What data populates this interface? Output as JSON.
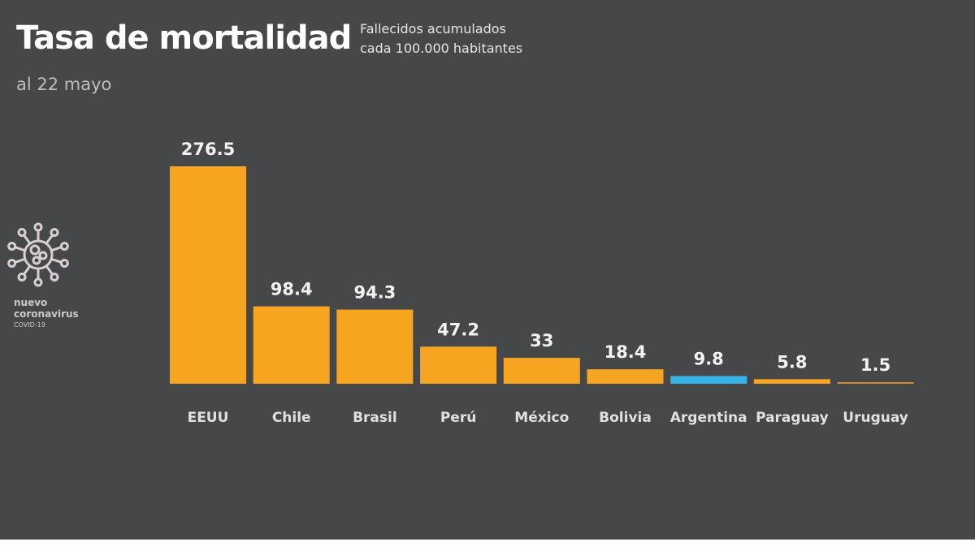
{
  "header": {
    "title": "Tasa de mortalidad",
    "subtitle_line1": "Fallecidos acumulados",
    "subtitle_line2": "cada 100.000 habitantes",
    "date": "al 22 mayo"
  },
  "brand": {
    "line1": "nuevo",
    "line2": "coronavirus",
    "line3": "COVID-19",
    "icon": "virus-icon"
  },
  "colors": {
    "background": "#464749",
    "default_bar": "#f7a520",
    "highlight_bar": "#36b4e8"
  },
  "chart_data": {
    "type": "bar",
    "title": "Tasa de mortalidad",
    "subtitle": "Fallecidos acumulados cada 100.000 habitantes",
    "categories": [
      "EEUU",
      "Chile",
      "Brasil",
      "Perú",
      "México",
      "Bolivia",
      "Argentina",
      "Paraguay",
      "Uruguay"
    ],
    "values": [
      276.5,
      98.4,
      94.3,
      47.2,
      33,
      18.4,
      9.8,
      5.8,
      1.5
    ],
    "value_labels": [
      "276.5",
      "98.4",
      "94.3",
      "47.2",
      "33",
      "18.4",
      "9.8",
      "5.8",
      "1.5"
    ],
    "highlight": "Argentina",
    "grid": false,
    "xlabel": "",
    "ylabel": ""
  }
}
